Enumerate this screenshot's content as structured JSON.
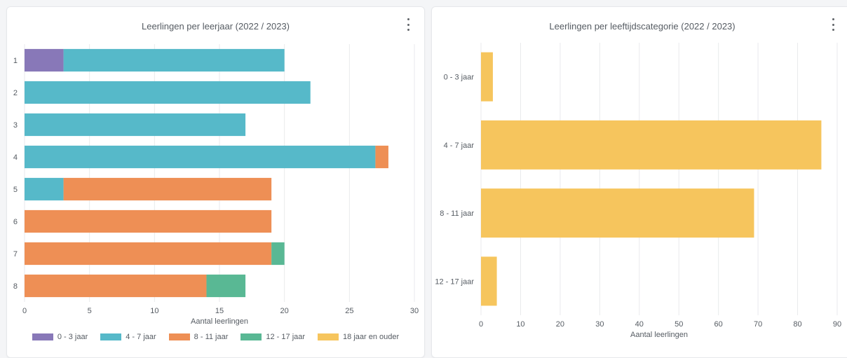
{
  "chart_data": [
    {
      "type": "bar",
      "orientation": "horizontal",
      "stacked": true,
      "title": "Leerlingen per leerjaar (2022 / 2023)",
      "xlabel": "Aantal leerlingen",
      "ylabel": "",
      "xlim": [
        0,
        30
      ],
      "xticks": [
        "0",
        "5",
        "10",
        "15",
        "20",
        "25",
        "30"
      ],
      "categories": [
        "1",
        "2",
        "3",
        "4",
        "5",
        "6",
        "7",
        "8"
      ],
      "grid": true,
      "legend": "bottom",
      "series": [
        {
          "name": "0 - 3 jaar",
          "color": "#8878b8",
          "values": [
            3,
            0,
            0,
            0,
            0,
            0,
            0,
            0
          ]
        },
        {
          "name": "4 - 7 jaar",
          "color": "#56b9c9",
          "values": [
            17,
            22,
            17,
            27,
            3,
            0,
            0,
            0
          ]
        },
        {
          "name": "8 - 11 jaar",
          "color": "#ee8f55",
          "values": [
            0,
            0,
            0,
            1,
            16,
            19,
            19,
            14
          ]
        },
        {
          "name": "12 - 17 jaar",
          "color": "#59b894",
          "values": [
            0,
            0,
            0,
            0,
            0,
            0,
            1,
            3
          ]
        },
        {
          "name": "18 jaar en ouder",
          "color": "#f6c55d",
          "values": [
            0,
            0,
            0,
            0,
            0,
            0,
            0,
            0
          ]
        }
      ]
    },
    {
      "type": "bar",
      "orientation": "horizontal",
      "title": "Leerlingen per leeftijdscategorie (2022 / 2023)",
      "xlabel": "Aantal leerlingen",
      "ylabel": "",
      "xlim": [
        0,
        90
      ],
      "xticks": [
        "0",
        "10",
        "20",
        "30",
        "40",
        "50",
        "60",
        "70",
        "80",
        "90"
      ],
      "categories": [
        "0 - 3 jaar",
        "4 - 7 jaar",
        "8 - 11 jaar",
        "12 - 17 jaar"
      ],
      "values": [
        3,
        86,
        69,
        4
      ],
      "color": "#f6c55d",
      "grid": true,
      "legend": "none"
    }
  ]
}
